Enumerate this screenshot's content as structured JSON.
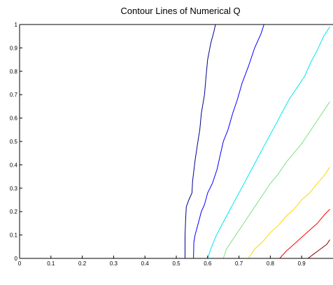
{
  "chart_data": {
    "type": "line",
    "subtype": "contour",
    "title": "Contour Lines of Numerical Q",
    "xlabel": "",
    "ylabel": "",
    "xlim": [
      0,
      1
    ],
    "ylim": [
      0,
      1
    ],
    "xticks": [
      "0",
      "0.1",
      "0.2",
      "0.3",
      "0.4",
      "0.5",
      "0.6",
      "0.7",
      "0.8",
      "0.9"
    ],
    "yticks": [
      "0",
      "0.1",
      "0.2",
      "0.3",
      "0.4",
      "0.5",
      "0.6",
      "0.7",
      "0.8",
      "0.9",
      "1"
    ],
    "xtick_values": [
      0,
      0.1,
      0.2,
      0.3,
      0.4,
      0.5,
      0.6,
      0.7,
      0.8,
      0.9
    ],
    "ytick_values": [
      0,
      0.1,
      0.2,
      0.3,
      0.4,
      0.5,
      0.6,
      0.7,
      0.8,
      0.9,
      1
    ],
    "grid": false,
    "series": [
      {
        "color": "#00008b",
        "x": [
          0.528,
          0.528,
          0.53,
          0.532,
          0.54,
          0.55,
          0.552,
          0.56,
          0.57,
          0.575,
          0.58,
          0.59,
          0.595,
          0.6,
          0.61,
          0.62,
          0.625
        ],
        "y": [
          0,
          0.1,
          0.17,
          0.22,
          0.25,
          0.28,
          0.33,
          0.42,
          0.51,
          0.55,
          0.62,
          0.7,
          0.78,
          0.85,
          0.92,
          0.97,
          1.0
        ]
      },
      {
        "color": "#0000ff",
        "x": [
          0.555,
          0.556,
          0.56,
          0.57,
          0.58,
          0.59,
          0.6,
          0.615,
          0.63,
          0.64,
          0.65,
          0.665,
          0.68,
          0.695,
          0.71,
          0.73,
          0.75,
          0.77,
          0.78
        ],
        "y": [
          0,
          0.07,
          0.1,
          0.15,
          0.2,
          0.23,
          0.28,
          0.32,
          0.38,
          0.44,
          0.5,
          0.55,
          0.62,
          0.68,
          0.75,
          0.82,
          0.9,
          0.96,
          1.0
        ]
      },
      {
        "color": "#00e5ee",
        "x": [
          0.6,
          0.61,
          0.625,
          0.64,
          0.66,
          0.68,
          0.7,
          0.72,
          0.74,
          0.76,
          0.78,
          0.8,
          0.82,
          0.84,
          0.86,
          0.885,
          0.91,
          0.93,
          0.95,
          0.97,
          0.99
        ],
        "y": [
          0,
          0.04,
          0.09,
          0.13,
          0.18,
          0.23,
          0.28,
          0.33,
          0.38,
          0.43,
          0.48,
          0.53,
          0.58,
          0.63,
          0.68,
          0.73,
          0.78,
          0.84,
          0.89,
          0.95,
          0.99
        ]
      },
      {
        "color": "#7fe07f",
        "x": [
          0.65,
          0.66,
          0.68,
          0.7,
          0.72,
          0.74,
          0.76,
          0.78,
          0.8,
          0.825,
          0.85,
          0.875,
          0.9,
          0.925,
          0.95,
          0.975,
          0.99
        ],
        "y": [
          0,
          0.04,
          0.08,
          0.12,
          0.16,
          0.2,
          0.24,
          0.28,
          0.32,
          0.36,
          0.41,
          0.45,
          0.49,
          0.54,
          0.59,
          0.64,
          0.67
        ]
      },
      {
        "color": "#ffd700",
        "x": [
          0.73,
          0.75,
          0.775,
          0.8,
          0.825,
          0.85,
          0.875,
          0.9,
          0.925,
          0.95,
          0.975,
          0.99
        ],
        "y": [
          0,
          0.04,
          0.07,
          0.11,
          0.14,
          0.18,
          0.21,
          0.25,
          0.28,
          0.32,
          0.36,
          0.39
        ]
      },
      {
        "color": "#ff0000",
        "x": [
          0.83,
          0.85,
          0.875,
          0.9,
          0.925,
          0.95,
          0.975,
          0.99
        ],
        "y": [
          0,
          0.03,
          0.06,
          0.09,
          0.12,
          0.15,
          0.19,
          0.21
        ]
      },
      {
        "color": "#8b0000",
        "x": [
          0.92,
          0.94,
          0.96,
          0.98,
          0.99
        ],
        "y": [
          0,
          0.02,
          0.04,
          0.06,
          0.08
        ]
      }
    ]
  }
}
